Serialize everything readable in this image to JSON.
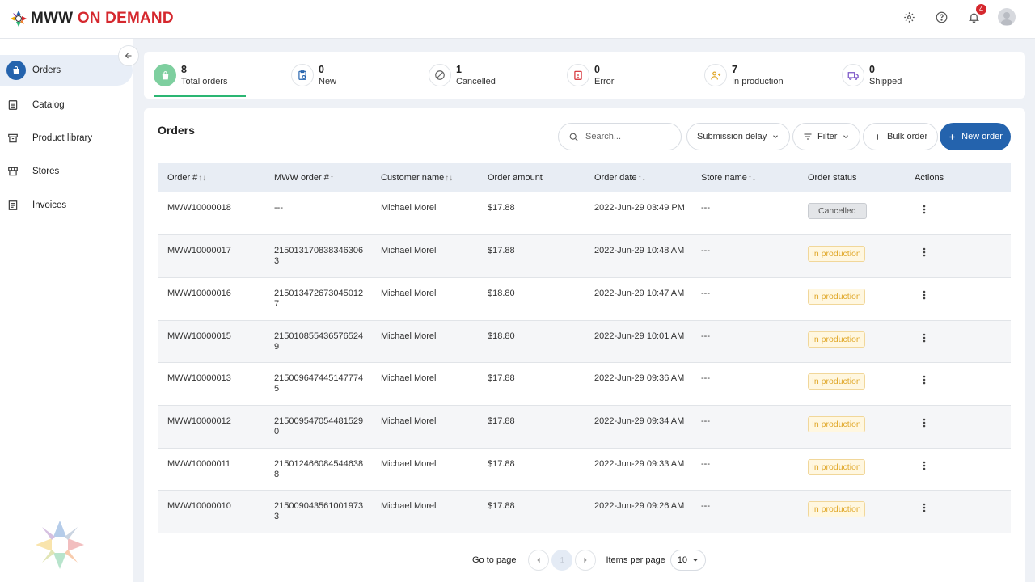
{
  "app": {
    "logo_text_1": "MWW",
    "logo_text_2": "ON DEMAND",
    "notification_count": "4",
    "brand_colors": {
      "primary": "#2463ad",
      "red": "#d5282e",
      "green": "#2bb673"
    }
  },
  "sidebar": {
    "items": [
      {
        "label": "Orders",
        "icon": "shopping-bag-icon",
        "active": true
      },
      {
        "label": "Catalog",
        "icon": "catalog-icon"
      },
      {
        "label": "Product library",
        "icon": "archive-icon"
      },
      {
        "label": "Stores",
        "icon": "store-icon"
      },
      {
        "label": "Invoices",
        "icon": "invoice-icon"
      }
    ]
  },
  "stats": [
    {
      "count": "8",
      "label": "Total orders"
    },
    {
      "count": "0",
      "label": "New"
    },
    {
      "count": "1",
      "label": "Cancelled"
    },
    {
      "count": "0",
      "label": "Error"
    },
    {
      "count": "7",
      "label": "In production"
    },
    {
      "count": "0",
      "label": "Shipped"
    }
  ],
  "orders": {
    "title": "Orders",
    "search_placeholder": "Search...",
    "submission_delay_label": "Submission delay",
    "filter_label": "Filter",
    "bulk_order_label": "Bulk order",
    "new_order_label": "New order",
    "columns": [
      "Order #",
      "MWW order #",
      "Customer name",
      "Order amount",
      "Order date",
      "Store name",
      "Order status",
      "Actions"
    ],
    "rows": [
      {
        "order": "MWW10000018",
        "mww": "---",
        "customer": "Michael Morel",
        "amount": "$17.88",
        "date": "2022-Jun-29 03:49 PM",
        "store": "---",
        "status": "Cancelled"
      },
      {
        "order": "MWW10000017",
        "mww": "2150131708383463063",
        "customer": "Michael Morel",
        "amount": "$17.88",
        "date": "2022-Jun-29 10:48 AM",
        "store": "---",
        "status": "In production"
      },
      {
        "order": "MWW10000016",
        "mww": "2150134726730450127",
        "customer": "Michael Morel",
        "amount": "$18.80",
        "date": "2022-Jun-29 10:47 AM",
        "store": "---",
        "status": "In production"
      },
      {
        "order": "MWW10000015",
        "mww": "2150108554365765249",
        "customer": "Michael Morel",
        "amount": "$18.80",
        "date": "2022-Jun-29 10:01 AM",
        "store": "---",
        "status": "In production"
      },
      {
        "order": "MWW10000013",
        "mww": "2150096474451477745",
        "customer": "Michael Morel",
        "amount": "$17.88",
        "date": "2022-Jun-29 09:36 AM",
        "store": "---",
        "status": "In production"
      },
      {
        "order": "MWW10000012",
        "mww": "2150095470544815290",
        "customer": "Michael Morel",
        "amount": "$17.88",
        "date": "2022-Jun-29 09:34 AM",
        "store": "---",
        "status": "In production"
      },
      {
        "order": "MWW10000011",
        "mww": "2150124660845446388",
        "customer": "Michael Morel",
        "amount": "$17.88",
        "date": "2022-Jun-29 09:33 AM",
        "store": "---",
        "status": "In production"
      },
      {
        "order": "MWW10000010",
        "mww": "2150090435610019733",
        "customer": "Michael Morel",
        "amount": "$17.88",
        "date": "2022-Jun-29 09:26 AM",
        "store": "---",
        "status": "In production"
      }
    ]
  },
  "pagination": {
    "go_to_page_label": "Go to page",
    "current_page": "1",
    "items_per_page_label": "Items per page",
    "items_per_page": "10"
  }
}
